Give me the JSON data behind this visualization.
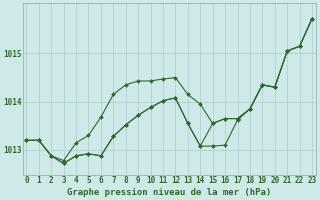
{
  "title": "Graphe pression niveau de la mer (hPa)",
  "bg": "#cfe8e8",
  "grid_color": "#aacccc",
  "lc": "#2d6a2d",
  "xlim": [
    -0.3,
    23.3
  ],
  "ylim": [
    1012.48,
    1016.05
  ],
  "yticks": [
    1013,
    1014,
    1015
  ],
  "xticks": [
    0,
    1,
    2,
    3,
    4,
    5,
    6,
    7,
    8,
    9,
    10,
    11,
    12,
    13,
    14,
    15,
    16,
    17,
    18,
    19,
    20,
    21,
    22,
    23
  ],
  "line1_y": [
    1013.2,
    1013.2,
    1012.88,
    1012.78,
    1013.15,
    1013.3,
    1013.68,
    1014.15,
    1014.35,
    1014.43,
    1014.43,
    1014.47,
    1014.5,
    1014.15,
    1013.95,
    1013.55,
    1013.65,
    1013.65,
    1013.85,
    1014.35,
    1014.3,
    1015.05,
    1015.15,
    1015.72
  ],
  "line2_y": [
    1013.2,
    1013.2,
    1012.88,
    1012.72,
    1012.88,
    1012.92,
    1012.88,
    1013.28,
    1013.52,
    1013.72,
    1013.88,
    1014.02,
    1014.08,
    1013.55,
    1013.08,
    1013.55,
    1013.65,
    1013.65,
    1013.85,
    1014.35,
    1014.3,
    1015.05,
    1015.15,
    1015.72
  ],
  "line3_y": [
    1013.2,
    1013.2,
    1012.88,
    1012.72,
    1012.88,
    1012.92,
    1012.88,
    1013.28,
    1013.52,
    1013.72,
    1013.88,
    1014.02,
    1014.08,
    1013.55,
    1013.08,
    1013.08,
    1013.1,
    1013.62,
    1013.85,
    1014.35,
    1014.3,
    1015.05,
    1015.15,
    1015.72
  ],
  "tick_fontsize": 5.5,
  "title_fontsize": 6.5
}
